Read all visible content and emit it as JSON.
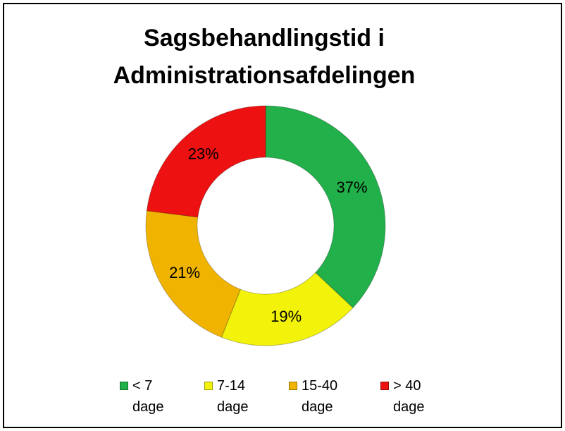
{
  "chart_data": {
    "type": "donut",
    "title": "Sagsbehandlingstid i Administrationsafdelingen",
    "categories": [
      "< 7 dage",
      "7-14 dage",
      "15-40 dage",
      "> 40 dage"
    ],
    "values": [
      37,
      19,
      21,
      23
    ],
    "value_labels": [
      "37%",
      "19%",
      "21%",
      "23%"
    ],
    "colors": [
      "#22b04a",
      "#f2f20a",
      "#f0b400",
      "#ee1111"
    ],
    "legend": "bottom"
  }
}
